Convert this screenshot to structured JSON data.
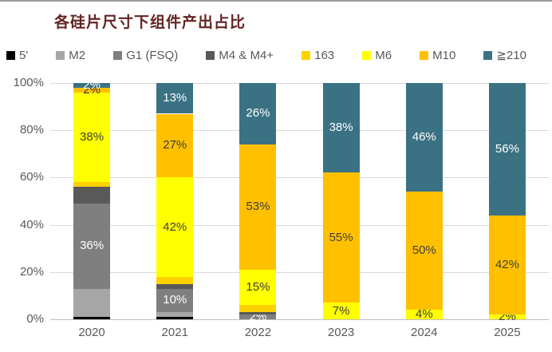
{
  "title": "各硅片尺寸下组件产出占比",
  "chart_data": {
    "type": "bar",
    "stacked": true,
    "title": "各硅片尺寸下组件产出占比",
    "categories": [
      "2020",
      "2021",
      "2022",
      "2023",
      "2024",
      "2025"
    ],
    "series": [
      {
        "name": "5'",
        "color": "#000000",
        "label_color": "#ffffff",
        "values": [
          1,
          1,
          0,
          0,
          0,
          0
        ],
        "labels": [
          null,
          null,
          null,
          null,
          null,
          null
        ]
      },
      {
        "name": "M2",
        "color": "#a6a6a6",
        "label_color": "#404040",
        "values": [
          12,
          2,
          0,
          0,
          0,
          0
        ],
        "labels": [
          null,
          null,
          null,
          null,
          null,
          null
        ]
      },
      {
        "name": "G1 (FSQ)",
        "color": "#7f7f7f",
        "label_color": "#ffffff",
        "values": [
          36,
          10,
          2,
          0,
          0,
          0
        ],
        "labels": [
          "36%",
          "10%",
          "2%",
          null,
          null,
          null
        ]
      },
      {
        "name": "M4 & M4+",
        "color": "#595959",
        "label_color": "#ffffff",
        "values": [
          7,
          2,
          1,
          0,
          0,
          0
        ],
        "labels": [
          null,
          null,
          null,
          null,
          null,
          null
        ]
      },
      {
        "name": "163",
        "color": "#ffd100",
        "label_color": "#404040",
        "values": [
          2,
          3,
          3,
          0,
          0,
          0
        ],
        "labels": [
          null,
          null,
          null,
          null,
          null,
          null
        ]
      },
      {
        "name": "M6",
        "color": "#ffff00",
        "label_color": "#404040",
        "values": [
          38,
          42,
          15,
          7,
          4,
          2
        ],
        "labels": [
          "38%",
          "42%",
          "15%",
          "7%",
          "4%",
          "2%"
        ]
      },
      {
        "name": "M10",
        "color": "#ffc000",
        "label_color": "#404040",
        "values": [
          2,
          27,
          53,
          55,
          50,
          42
        ],
        "labels": [
          "2%",
          "27%",
          "53%",
          "55%",
          "50%",
          "42%"
        ]
      },
      {
        "name": "≧210",
        "color": "#3a7284",
        "label_color": "#ffffff",
        "values": [
          2,
          13,
          26,
          38,
          46,
          56
        ],
        "labels": [
          "2%",
          "13%",
          "26%",
          "38%",
          "46%",
          "56%"
        ]
      }
    ],
    "y_axis": {
      "min": 0,
      "max": 100,
      "tick_step": 20,
      "ticks": [
        "0%",
        "20%",
        "40%",
        "60%",
        "80%",
        "100%"
      ]
    },
    "legend_position": "top",
    "grid": true
  }
}
